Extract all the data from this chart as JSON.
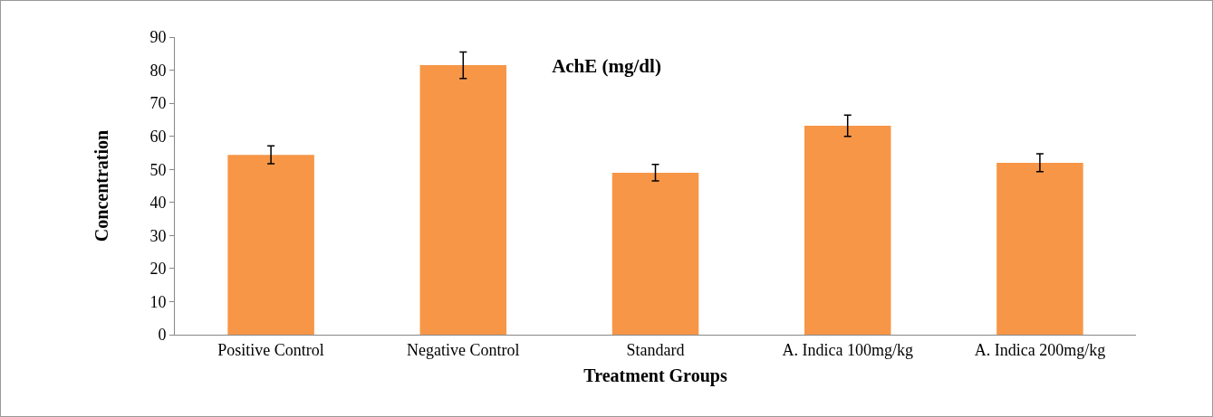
{
  "chart_data": {
    "type": "bar",
    "title": "AchE (mg/dl)",
    "xlabel": "Treatment Groups",
    "ylabel": "Concentration",
    "categories": [
      "Positive Control",
      "Negative Control",
      "Standard",
      "A. Indica 100mg/kg",
      "A. Indica 200mg/kg"
    ],
    "values": [
      54.4,
      81.5,
      49,
      63.2,
      52
    ],
    "errors": [
      2.7,
      4,
      2.5,
      3.2,
      2.7
    ],
    "color": "#f79646",
    "ylim": [
      0,
      90
    ],
    "yticks": [
      0,
      10,
      20,
      30,
      40,
      50,
      60,
      70,
      80,
      90
    ],
    "grid": false
  }
}
